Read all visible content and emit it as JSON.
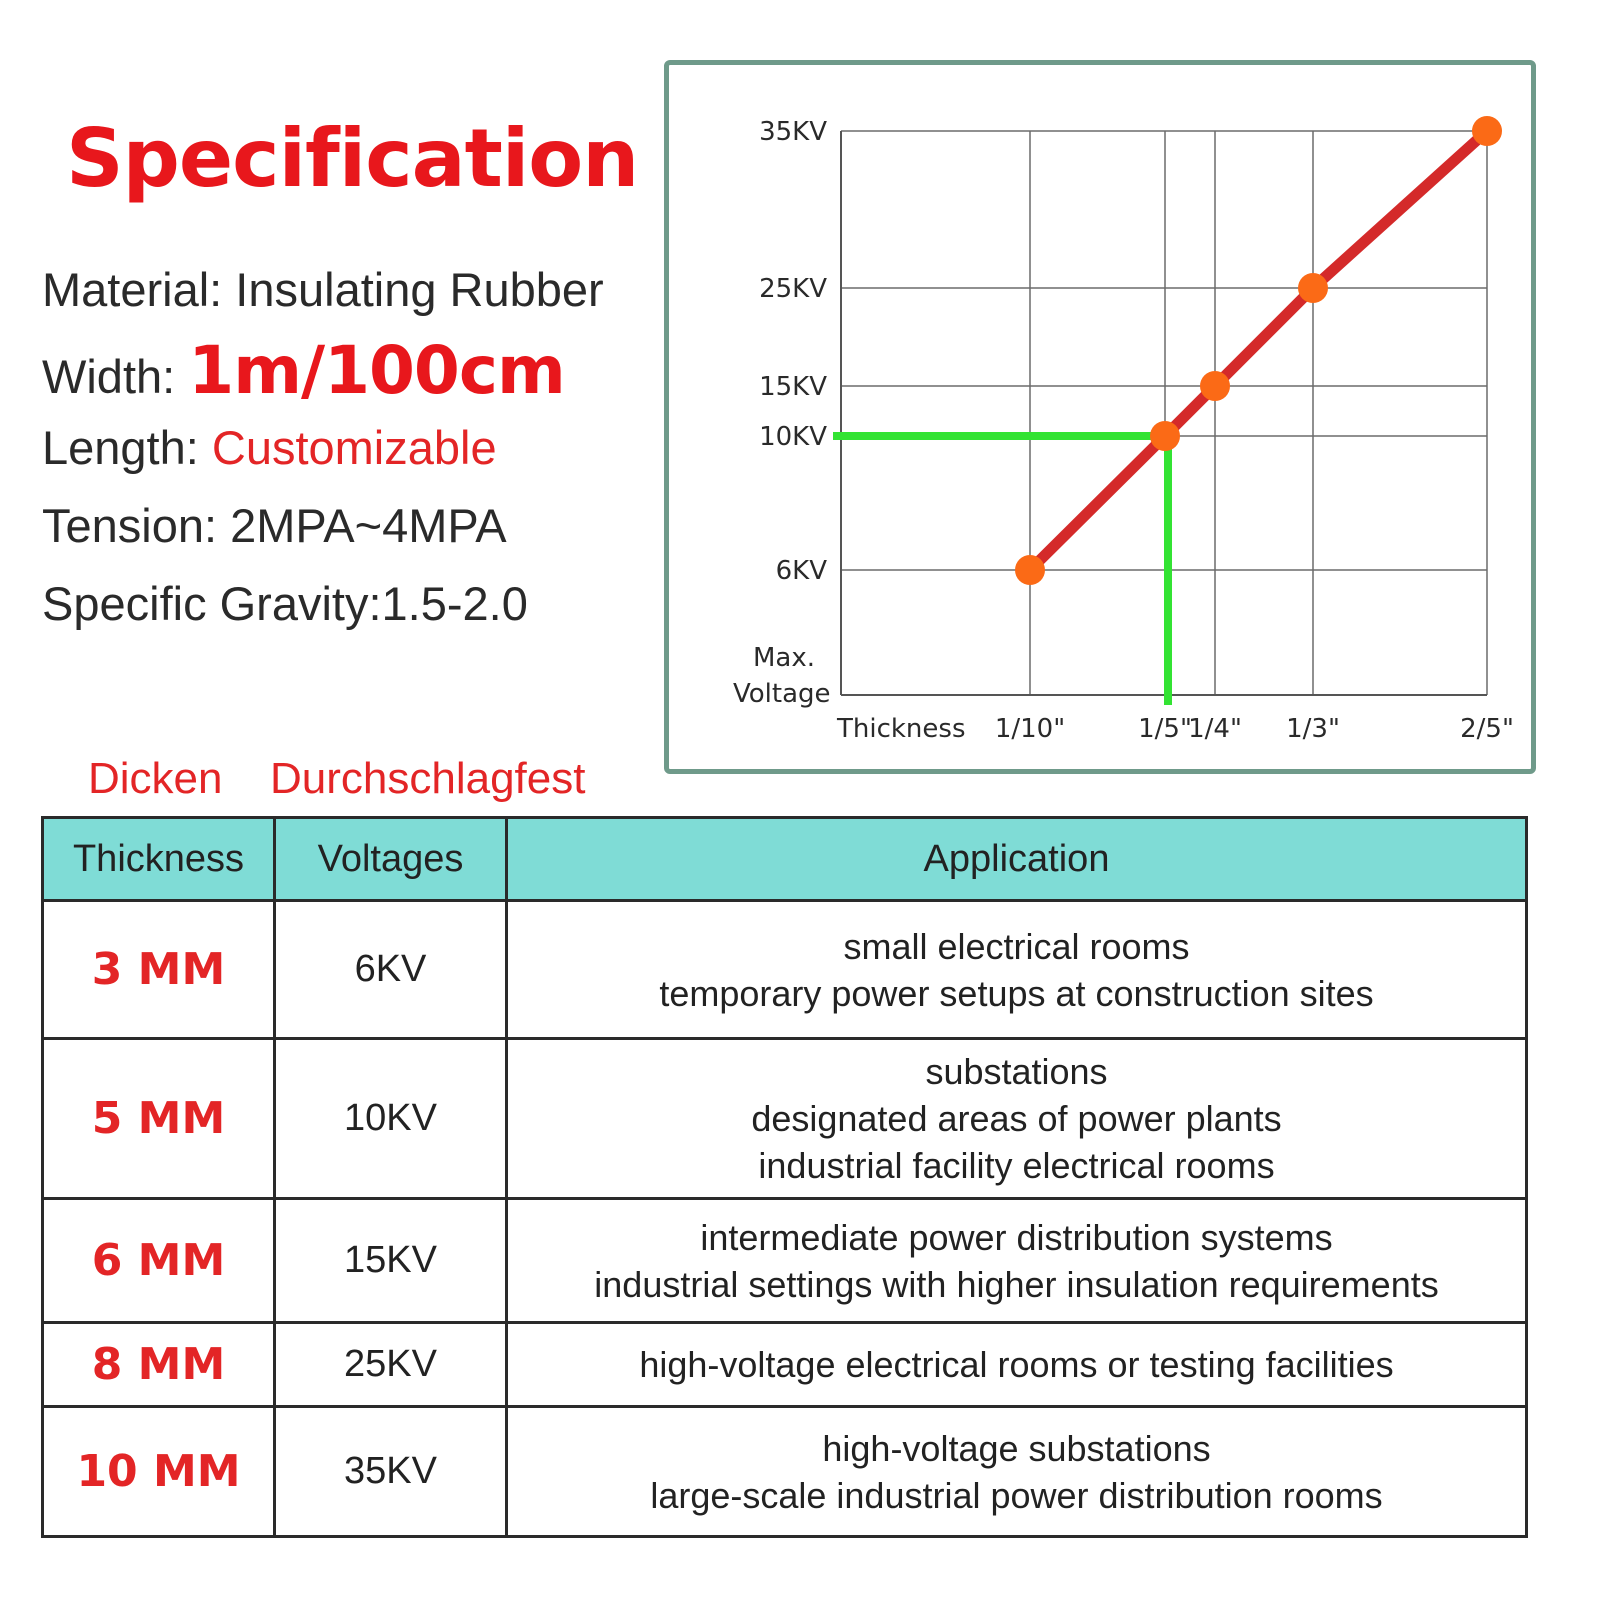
{
  "title": "Specification",
  "specs": {
    "material": {
      "label": "Material:",
      "value": "Insulating Rubber"
    },
    "width": {
      "label": "Width:",
      "value": "1m/100cm"
    },
    "length": {
      "label": "Length:",
      "value": "Customizable"
    },
    "tension": {
      "label": "Tension:",
      "value": "2MPA~4MPA"
    },
    "gravity": {
      "label": "Specific Gravity:",
      "value": "1.5-2.0"
    }
  },
  "colors": {
    "accent": "#e32526",
    "line": "#d42a2a",
    "point": "#fb6a16",
    "highlight": "#33e333",
    "header_bg": "#7fdcd6",
    "frame": "#6f9a8a"
  },
  "chart_data": {
    "type": "line",
    "y_label_lines": [
      "Max.",
      "Voltage"
    ],
    "x_label": "Thickness",
    "x_ticks": [
      "1/10\"",
      "1/5\"",
      "1/4\"",
      "1/3\"",
      "2/5\""
    ],
    "y_ticks": [
      "6KV",
      "10KV",
      "15KV",
      "25KV",
      "35KV"
    ],
    "x_values": [
      0.1,
      0.2,
      0.25,
      0.333,
      0.4
    ],
    "y_values": [
      6,
      10,
      15,
      25,
      35
    ],
    "series": [
      {
        "x": [
          "1/10\"",
          "1/5\"",
          "1/4\"",
          "1/3\"",
          "2/5\""
        ],
        "values_kv": [
          6,
          10,
          15,
          25,
          35
        ]
      }
    ],
    "highlight": {
      "x": "1/5\"",
      "y": "10KV"
    },
    "grid": true
  },
  "table_labels": {
    "dicken": "Dicken",
    "durchschlagfest": "Durchschlagfest"
  },
  "table": {
    "headers": [
      "Thickness",
      "Voltages",
      "Application"
    ],
    "rows": [
      {
        "thickness": "3 MM",
        "voltage": "6KV",
        "application": [
          "small electrical rooms",
          "temporary power setups at construction sites"
        ]
      },
      {
        "thickness": "5 MM",
        "voltage": "10KV",
        "application": [
          "substations",
          "designated areas of power plants",
          "industrial facility electrical rooms"
        ]
      },
      {
        "thickness": "6 MM",
        "voltage": "15KV",
        "application": [
          "intermediate power distribution systems",
          "industrial settings with higher insulation requirements"
        ]
      },
      {
        "thickness": "8 MM",
        "voltage": "25KV",
        "application": [
          "high-voltage electrical rooms or testing facilities"
        ]
      },
      {
        "thickness": "10 MM",
        "voltage": "35KV",
        "application": [
          "high-voltage substations",
          "large-scale industrial power distribution rooms"
        ]
      }
    ]
  }
}
